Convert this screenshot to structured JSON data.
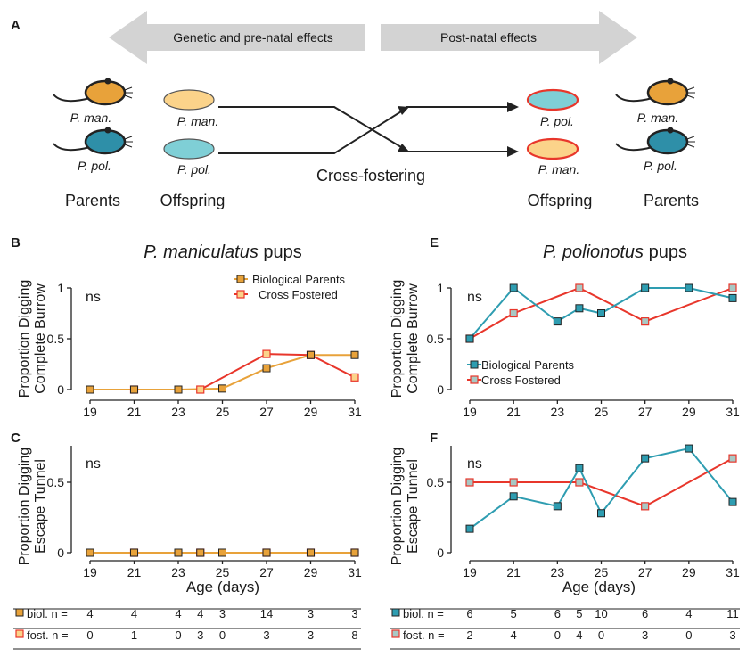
{
  "panel_letters": {
    "a": "A",
    "b": "B",
    "c": "C",
    "e": "E",
    "f": "F"
  },
  "schematic": {
    "genetic_arrow": "Genetic and pre-natal effects",
    "postnatal_arrow": "Post-natal effects",
    "left_parent_1": "P. man.",
    "left_parent_2": "P. pol.",
    "left_offspring_1": "P. man.",
    "left_offspring_2": "P. pol.",
    "right_offspring_1": "P. pol.",
    "right_offspring_2": "P. man.",
    "right_parent_1": "P. man.",
    "right_parent_2": "P. pol.",
    "parents_label_left": "Parents",
    "offspring_label_left": "Offspring",
    "cross_fostering": "Cross-fostering",
    "offspring_label_right": "Offspring",
    "parents_label_right": "Parents"
  },
  "colors": {
    "man_body": "#e8a23a",
    "pol_body": "#2e8fa8",
    "pup_man": "#fbd38a",
    "pup_pol": "#7fcfd6",
    "fostered_outline": "#e8362b",
    "bio_man": "#e8a23a",
    "fost": "#e8362b",
    "bio_pol": "#2e9db1",
    "arrow_grey": "#d3d3d3"
  },
  "titles": {
    "left": "P. maniculatus",
    "left_suffix": " pups",
    "right": "P. polionotus",
    "right_suffix": " pups"
  },
  "axis": {
    "ylabel_top_1": "Proportion Digging",
    "ylabel_top_2": "Complete Burrow",
    "ylabel_bottom_1": "Proportion Digging",
    "ylabel_bottom_2": "Escape Tunnel",
    "xlabel": "Age (days)",
    "ns": "ns"
  },
  "legend": {
    "bio": "Biological Parents",
    "fost": "Cross Fostered"
  },
  "chart_data": [
    {
      "id": "B",
      "type": "line",
      "title": "P. maniculatus pups",
      "xlabel": "",
      "ylabel": "Proportion Digging Complete Burrow",
      "x_ticks": [
        19,
        21,
        23,
        25,
        27,
        29,
        31
      ],
      "y_ticks": [
        0,
        0.5,
        1
      ],
      "y_tick_labels": [
        "0",
        "0.5",
        "1"
      ],
      "ylim": [
        0,
        1
      ],
      "legend_position": "top-right",
      "series": [
        {
          "name": "Biological Parents",
          "color": "#e8a23a",
          "x": [
            19,
            21,
            23,
            25,
            27,
            29,
            31
          ],
          "y": [
            0,
            0,
            0,
            0.01,
            0.21,
            0.34,
            0.34
          ]
        },
        {
          "name": "Cross Fostered",
          "color": "#e8362b",
          "x": [
            21,
            24,
            27,
            29,
            31
          ],
          "y": [
            0,
            0,
            0.35,
            0.34,
            0.12
          ]
        }
      ]
    },
    {
      "id": "C",
      "type": "line",
      "xlabel": "Age (days)",
      "ylabel": "Proportion Digging Escape Tunnel",
      "x_ticks": [
        19,
        21,
        23,
        25,
        27,
        29,
        31
      ],
      "y_ticks": [
        0,
        0.5
      ],
      "y_tick_labels": [
        "0",
        "0.5"
      ],
      "ylim": [
        0,
        0.75
      ],
      "series": [
        {
          "name": "Biological Parents",
          "color": "#e8a23a",
          "x": [
            19,
            21,
            23,
            24,
            25,
            27,
            29,
            31
          ],
          "y": [
            0,
            0,
            0,
            0,
            0,
            0,
            0,
            0
          ]
        },
        {
          "name": "Cross Fostered",
          "color": "#e8362b",
          "x": [
            21,
            24,
            27,
            29,
            31
          ],
          "y": [
            0,
            0,
            0,
            0,
            0
          ]
        }
      ]
    },
    {
      "id": "E",
      "type": "line",
      "title": "P. polionotus pups",
      "xlabel": "",
      "ylabel": "Proportion Digging Complete Burrow",
      "x_ticks": [
        19,
        21,
        23,
        25,
        27,
        29,
        31
      ],
      "y_ticks": [
        0,
        0.5,
        1
      ],
      "y_tick_labels": [
        "0",
        "0.5",
        "1"
      ],
      "ylim": [
        0,
        1
      ],
      "legend_position": "bottom-left",
      "series": [
        {
          "name": "Biological Parents",
          "color": "#2e9db1",
          "x": [
            19,
            21,
            23,
            24,
            25,
            27,
            29,
            31
          ],
          "y": [
            0.5,
            1,
            0.67,
            0.8,
            0.75,
            1,
            1,
            0.9
          ]
        },
        {
          "name": "Cross Fostered",
          "color": "#e8362b",
          "x": [
            19,
            21,
            24,
            27,
            31
          ],
          "y": [
            0.5,
            0.75,
            1,
            0.67,
            1
          ]
        }
      ]
    },
    {
      "id": "F",
      "type": "line",
      "xlabel": "Age (days)",
      "ylabel": "Proportion Digging Escape Tunnel",
      "x_ticks": [
        19,
        21,
        23,
        25,
        27,
        29,
        31
      ],
      "y_ticks": [
        0,
        0.5
      ],
      "y_tick_labels": [
        "0",
        "0.5"
      ],
      "ylim": [
        0,
        0.75
      ],
      "series": [
        {
          "name": "Biological Parents",
          "color": "#2e9db1",
          "x": [
            19,
            21,
            23,
            24,
            25,
            27,
            29,
            31
          ],
          "y": [
            0.17,
            0.4,
            0.33,
            0.6,
            0.28,
            0.67,
            0.74,
            0.36
          ]
        },
        {
          "name": "Cross Fostered",
          "color": "#e8362b",
          "x": [
            19,
            21,
            24,
            27,
            31
          ],
          "y": [
            0.5,
            0.5,
            0.5,
            0.33,
            0.67
          ]
        }
      ]
    }
  ],
  "n_tables": [
    {
      "id": "left",
      "rows": [
        {
          "label": "biol. n =",
          "color": "#e8a23a",
          "x": [
            19,
            21,
            23,
            24,
            25,
            27,
            29,
            31
          ],
          "values": [
            "4",
            "4",
            "4",
            "4",
            "3",
            "14",
            "3",
            "3"
          ]
        },
        {
          "label": "fost. n =",
          "color": "#e8362b",
          "x": [
            19,
            21,
            23,
            24,
            25,
            27,
            29,
            31
          ],
          "values": [
            "0",
            "1",
            "0",
            "3",
            "0",
            "3",
            "3",
            "8"
          ]
        }
      ]
    },
    {
      "id": "right",
      "rows": [
        {
          "label": "biol. n =",
          "color": "#2e9db1",
          "x": [
            19,
            21,
            23,
            24,
            25,
            27,
            29,
            31
          ],
          "values": [
            "6",
            "5",
            "6",
            "5",
            "10",
            "6",
            "4",
            "11"
          ]
        },
        {
          "label": "fost. n =",
          "color": "#e8362b",
          "x": [
            19,
            21,
            23,
            24,
            25,
            27,
            29,
            31
          ],
          "values": [
            "2",
            "4",
            "0",
            "4",
            "0",
            "3",
            "0",
            "3"
          ]
        }
      ]
    }
  ]
}
